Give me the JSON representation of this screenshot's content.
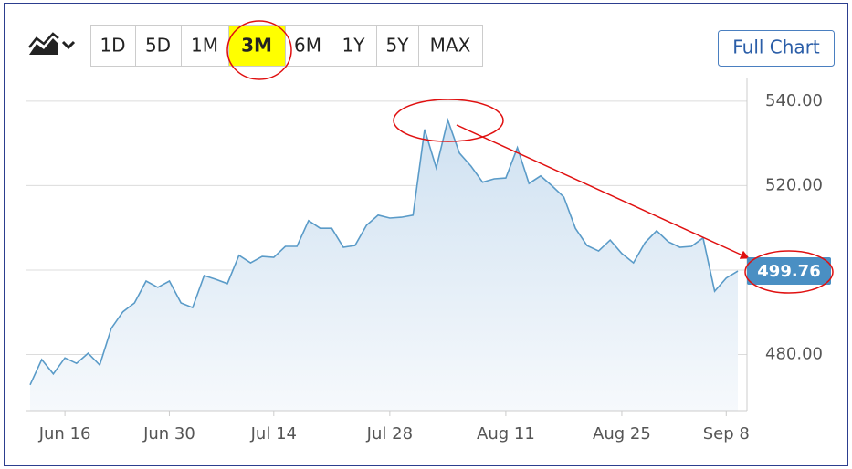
{
  "chart_data": {
    "type": "line",
    "categories": [
      null,
      null,
      null,
      "Jun 16",
      null,
      null,
      null,
      null,
      null,
      null,
      null,
      null,
      "Jun 30",
      null,
      null,
      null,
      null,
      null,
      null,
      null,
      null,
      "Jul 14",
      null,
      null,
      null,
      null,
      null,
      null,
      null,
      null,
      null,
      "Jul 28",
      null,
      null,
      null,
      null,
      null,
      null,
      null,
      null,
      null,
      "Aug 11",
      null,
      null,
      null,
      null,
      null,
      null,
      null,
      null,
      null,
      "Aug 25",
      null,
      null,
      null,
      null,
      null,
      null,
      null,
      null,
      "Sep 8",
      null
    ],
    "values": [
      472.8,
      478.8,
      475.4,
      479.2,
      477.9,
      480.3,
      477.5,
      486.2,
      490.1,
      492.2,
      497.4,
      495.9,
      497.4,
      492.2,
      491.1,
      498.7,
      497.8,
      496.8,
      503.5,
      501.7,
      503.2,
      503.0,
      505.6,
      505.6,
      511.7,
      509.9,
      509.9,
      505.4,
      505.8,
      510.6,
      513.0,
      512.3,
      512.5,
      513.0,
      533.3,
      524.2,
      535.5,
      527.7,
      524.6,
      520.8,
      521.6,
      521.8,
      529.0,
      520.5,
      522.3,
      519.9,
      517.3,
      509.9,
      505.8,
      504.5,
      507.1,
      503.9,
      501.7,
      506.5,
      509.3,
      506.7,
      505.4,
      505.6,
      507.6,
      495.0,
      498.1,
      499.76
    ],
    "color": "#5a9bc8",
    "ylim": [
      466.7,
      545.6
    ],
    "yticks": [
      {
        "value": 480,
        "label": "480.00"
      },
      {
        "value": 500,
        "label": "500.00"
      },
      {
        "value": 520,
        "label": "520.00"
      },
      {
        "value": 540,
        "label": "540.00"
      }
    ],
    "grid": true
  },
  "range_buttons": [
    "1D",
    "5D",
    "1M",
    "3M",
    "6M",
    "1Y",
    "5Y",
    "MAX"
  ],
  "selected_range": "3M",
  "full_chart_button": "Full Chart"
}
